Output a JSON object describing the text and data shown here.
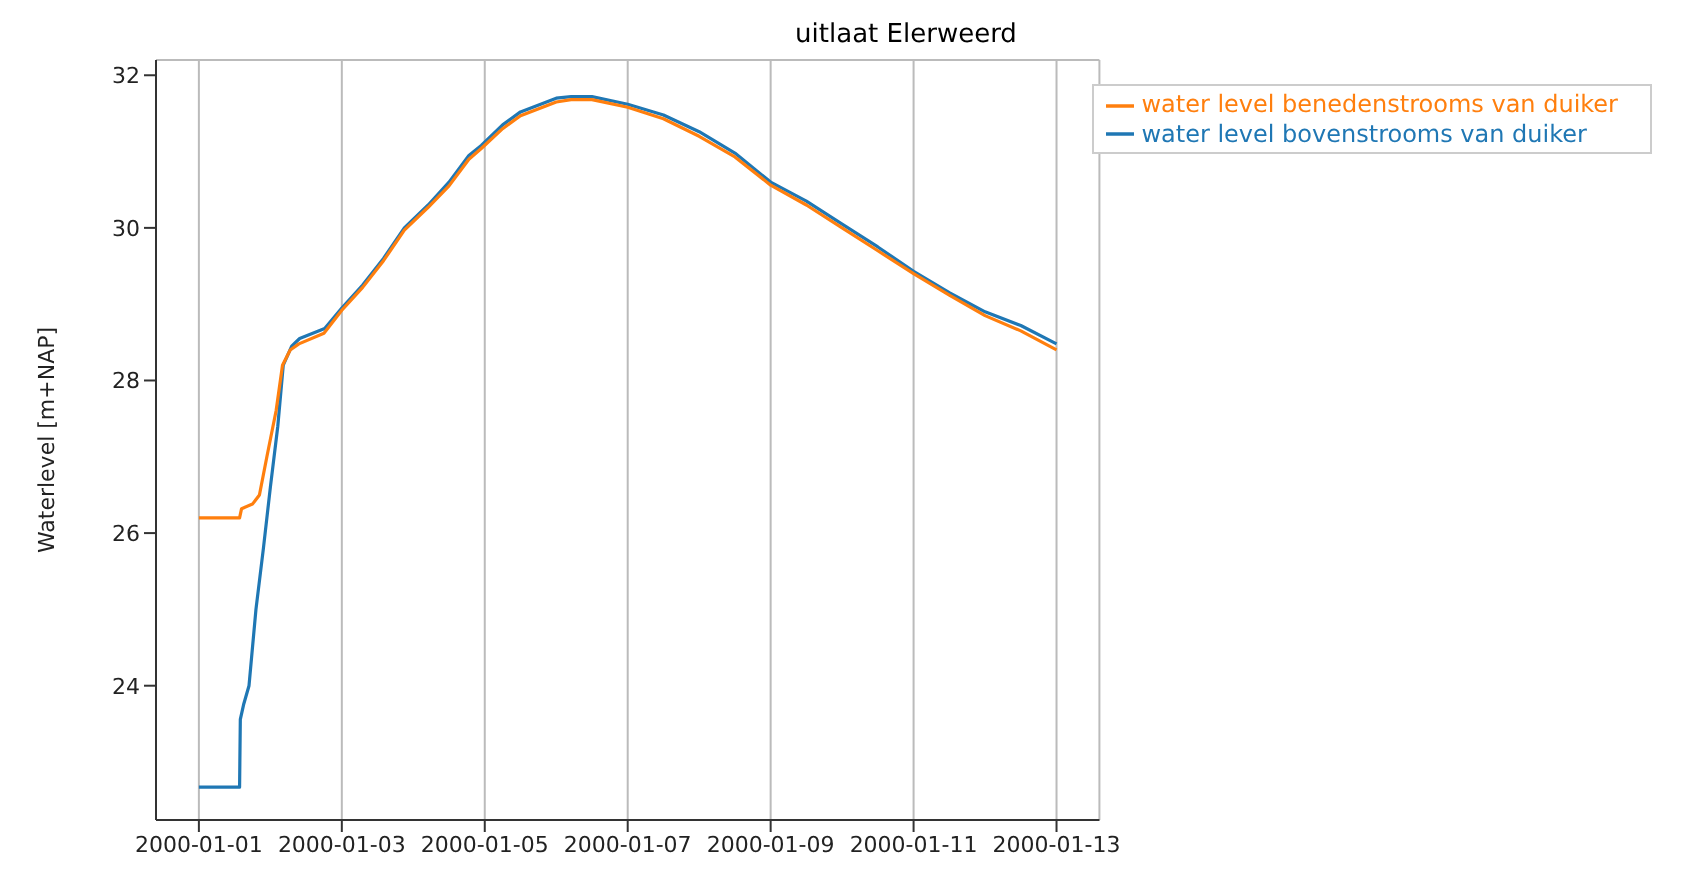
{
  "chart_data": {
    "type": "line",
    "title": "uitlaat Elerweerd",
    "ylabel": "Waterlevel [m+NAP]",
    "xlim": [
      "1999-12-31T09:36",
      "2000-01-13T14:24"
    ],
    "xticks": [
      {
        "value": "2000-01-01",
        "label": "2000-01-01"
      },
      {
        "value": "2000-01-03",
        "label": "2000-01-03"
      },
      {
        "value": "2000-01-05",
        "label": "2000-01-05"
      },
      {
        "value": "2000-01-07",
        "label": "2000-01-07"
      },
      {
        "value": "2000-01-09",
        "label": "2000-01-09"
      },
      {
        "value": "2000-01-11",
        "label": "2000-01-11"
      },
      {
        "value": "2000-01-13",
        "label": "2000-01-13"
      }
    ],
    "ylim": [
      22.24,
      32.2
    ],
    "yticks": [
      24,
      26,
      28,
      30,
      32
    ],
    "grid": true,
    "legend": "top right",
    "line_style": "solid",
    "marker": "none",
    "series": [
      {
        "name": "water level bovenstrooms van duiker",
        "color": "#1f77b4",
        "x": [
          "2000-01-01T00:00",
          "2000-01-01T13:40",
          "2000-01-01T13:55",
          "2000-01-01T15:00",
          "2000-01-01T16:50",
          "2000-01-01T19:10",
          "2000-01-01T21:40",
          "2000-01-02T00:00",
          "2000-01-02T02:30",
          "2000-01-02T04:20",
          "2000-01-02T07:10",
          "2000-01-02T09:50",
          "2000-01-02T18:15",
          "2000-01-03T00:00",
          "2000-01-03T07:00",
          "2000-01-03T14:00",
          "2000-01-03T21:00",
          "2000-01-04T05:00",
          "2000-01-04T12:00",
          "2000-01-04T18:40",
          "2000-01-04T22:50",
          "2000-01-05T06:00",
          "2000-01-05T12:00",
          "2000-01-06T00:00",
          "2000-01-06T05:00",
          "2000-01-06T12:00",
          "2000-01-07T00:00",
          "2000-01-07T12:00",
          "2000-01-08T00:00",
          "2000-01-08T12:00",
          "2000-01-09T00:00",
          "2000-01-09T12:00",
          "2000-01-10T00:00",
          "2000-01-10T12:00",
          "2000-01-11T00:00",
          "2000-01-11T12:00",
          "2000-01-12T00:00",
          "2000-01-12T12:00",
          "2000-01-13T00:00"
        ],
        "values": [
          22.67,
          22.67,
          23.56,
          23.75,
          24.0,
          25.0,
          25.8,
          26.6,
          27.4,
          28.2,
          28.45,
          28.55,
          28.68,
          28.95,
          29.25,
          29.6,
          30.0,
          30.3,
          30.6,
          30.95,
          31.08,
          31.35,
          31.52,
          31.7,
          31.72,
          31.72,
          31.62,
          31.48,
          31.26,
          30.98,
          30.6,
          30.35,
          30.05,
          29.75,
          29.43,
          29.15,
          28.9,
          28.72,
          28.48
        ]
      },
      {
        "name": "water level benedenstrooms van duiker",
        "color": "#ff7f0e",
        "x": [
          "2000-01-01T00:00",
          "2000-01-01T13:40",
          "2000-01-01T14:20",
          "2000-01-01T18:00",
          "2000-01-01T20:20",
          "2000-01-01T22:50",
          "2000-01-02T01:55",
          "2000-01-02T04:05",
          "2000-01-02T06:40",
          "2000-01-02T09:35",
          "2000-01-02T18:00",
          "2000-01-03T00:00",
          "2000-01-03T07:00",
          "2000-01-03T14:00",
          "2000-01-03T21:00",
          "2000-01-04T05:00",
          "2000-01-04T12:00",
          "2000-01-04T18:40",
          "2000-01-04T22:50",
          "2000-01-05T06:00",
          "2000-01-05T12:00",
          "2000-01-06T00:00",
          "2000-01-06T05:00",
          "2000-01-06T12:00",
          "2000-01-07T00:00",
          "2000-01-07T12:00",
          "2000-01-08T00:00",
          "2000-01-08T12:00",
          "2000-01-09T00:00",
          "2000-01-09T12:00",
          "2000-01-10T00:00",
          "2000-01-10T12:00",
          "2000-01-11T00:00",
          "2000-01-11T12:00",
          "2000-01-12T00:00",
          "2000-01-12T12:00",
          "2000-01-13T00:00"
        ],
        "values": [
          26.2,
          26.2,
          26.32,
          26.38,
          26.5,
          27.0,
          27.6,
          28.2,
          28.4,
          28.48,
          28.62,
          28.92,
          29.22,
          29.57,
          29.97,
          30.27,
          30.55,
          30.9,
          31.04,
          31.3,
          31.47,
          31.65,
          31.68,
          31.68,
          31.58,
          31.43,
          31.2,
          30.93,
          30.56,
          30.3,
          30.0,
          29.7,
          29.4,
          29.12,
          28.85,
          28.65,
          28.4
        ]
      }
    ]
  }
}
